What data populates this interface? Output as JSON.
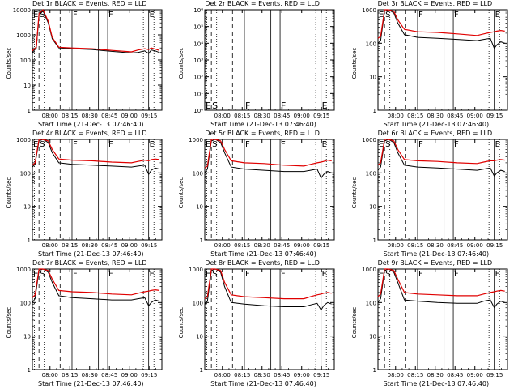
{
  "colors": {
    "events": "#000000",
    "lld": "#e00000",
    "axis": "#000000",
    "background": "#ffffff"
  },
  "common": {
    "ylabel": "Counts/sec",
    "xlabel": "Start Time (21-Dec-13 07:46:40)",
    "xticks": [
      "08:00",
      "08:15",
      "08:30",
      "08:45",
      "09:00",
      "09:15"
    ]
  },
  "chart_data": [
    {
      "type": "line",
      "title": "Det 1r BLACK = Events, RED = LLD",
      "ylim": [
        1,
        10000
      ],
      "yticks": [
        "1",
        "10",
        "100",
        "1000",
        "10000"
      ],
      "markers": [
        {
          "label": "E",
          "t": 0
        },
        {
          "label": "S",
          "t": 5
        },
        {
          "label": "F",
          "t": 30
        },
        {
          "label": "F",
          "t": 57
        },
        {
          "label": "E",
          "t": 88
        }
      ],
      "series": [
        {
          "name": "Events",
          "x": [
            0,
            3,
            5,
            8,
            12,
            15,
            20,
            30,
            45,
            60,
            75,
            80,
            85,
            88,
            90,
            93,
            96
          ],
          "values": [
            200,
            300,
            6000,
            9000,
            3000,
            700,
            300,
            280,
            260,
            220,
            190,
            200,
            230,
            180,
            250,
            230,
            200
          ]
        },
        {
          "name": "LLD",
          "x": [
            0,
            3,
            5,
            8,
            12,
            15,
            20,
            30,
            45,
            60,
            75,
            80,
            85,
            88,
            90,
            93,
            96
          ],
          "values": [
            230,
            330,
            7000,
            10000,
            3500,
            800,
            320,
            300,
            280,
            240,
            210,
            250,
            280,
            260,
            300,
            270,
            240
          ]
        }
      ]
    },
    {
      "type": "line",
      "title": "Det 2r BLACK = Events, RED = LLD",
      "ylim": [
        1,
        1000000
      ],
      "yticks": [
        "10⁰",
        "10¹",
        "10²",
        "10³",
        "10⁴",
        "10⁵",
        "10⁶"
      ],
      "markers": [
        {
          "label": "E",
          "t": 0
        },
        {
          "label": "S",
          "t": 5
        },
        {
          "label": "F",
          "t": 30
        },
        {
          "label": "F",
          "t": 57
        },
        {
          "label": "E",
          "t": 88
        }
      ],
      "series": [
        {
          "name": "Events",
          "x": [],
          "values": []
        },
        {
          "name": "LLD",
          "x": [],
          "values": []
        }
      ]
    },
    {
      "type": "line",
      "title": "Det 3r BLACK = Events, RED = LLD",
      "ylim": [
        1,
        1000
      ],
      "yticks": [
        "1",
        "10",
        "100",
        "1000"
      ],
      "markers": [
        {
          "label": "E",
          "t": 0
        },
        {
          "label": "S",
          "t": 5
        },
        {
          "label": "F",
          "t": 30
        },
        {
          "label": "F",
          "t": 57
        },
        {
          "label": "E",
          "t": 88
        }
      ],
      "series": [
        {
          "name": "Events",
          "x": [
            0,
            2,
            5,
            8,
            12,
            15,
            20,
            30,
            45,
            60,
            75,
            80,
            85,
            88,
            90,
            93,
            96
          ],
          "values": [
            100,
            120,
            900,
            1000,
            800,
            400,
            180,
            150,
            140,
            130,
            120,
            130,
            140,
            70,
            90,
            110,
            100
          ]
        },
        {
          "name": "LLD",
          "x": [
            0,
            2,
            5,
            8,
            12,
            15,
            20,
            30,
            45,
            60,
            75,
            80,
            85,
            88,
            90,
            93,
            96
          ],
          "values": [
            140,
            160,
            1000,
            1000,
            900,
            500,
            260,
            220,
            210,
            190,
            170,
            190,
            210,
            220,
            230,
            240,
            230
          ]
        }
      ]
    },
    {
      "type": "line",
      "title": "Det 4r BLACK = Events, RED = LLD",
      "ylim": [
        1,
        1000
      ],
      "yticks": [
        "1",
        "10",
        "100",
        "1000"
      ],
      "markers": [
        {
          "label": "E",
          "t": 0
        },
        {
          "label": "S",
          "t": 5
        },
        {
          "label": "F",
          "t": 30
        },
        {
          "label": "F",
          "t": 57
        },
        {
          "label": "E",
          "t": 88
        }
      ],
      "series": [
        {
          "name": "Events",
          "x": [
            0,
            2,
            5,
            8,
            12,
            15,
            20,
            30,
            45,
            60,
            75,
            80,
            85,
            88,
            90,
            93,
            96
          ],
          "values": [
            150,
            180,
            900,
            1000,
            800,
            400,
            200,
            180,
            170,
            160,
            150,
            160,
            170,
            90,
            120,
            140,
            130
          ]
        },
        {
          "name": "LLD",
          "x": [
            0,
            2,
            5,
            8,
            12,
            15,
            20,
            30,
            45,
            60,
            75,
            80,
            85,
            88,
            90,
            93,
            96
          ],
          "values": [
            170,
            200,
            1000,
            1000,
            900,
            500,
            260,
            240,
            230,
            210,
            200,
            220,
            240,
            230,
            250,
            260,
            250
          ]
        }
      ]
    },
    {
      "type": "line",
      "title": "Det 5r BLACK = Events, RED = LLD",
      "ylim": [
        1,
        1000
      ],
      "yticks": [
        "1",
        "10",
        "100",
        "1000"
      ],
      "markers": [
        {
          "label": "E",
          "t": 0
        },
        {
          "label": "S",
          "t": 5
        },
        {
          "label": "F",
          "t": 30
        },
        {
          "label": "F",
          "t": 57
        },
        {
          "label": "E",
          "t": 88
        }
      ],
      "series": [
        {
          "name": "Events",
          "x": [
            0,
            2,
            5,
            8,
            12,
            15,
            20,
            30,
            45,
            60,
            75,
            80,
            85,
            88,
            90,
            93,
            96
          ],
          "values": [
            100,
            130,
            900,
            1000,
            800,
            400,
            150,
            130,
            120,
            110,
            110,
            120,
            130,
            70,
            90,
            110,
            100
          ]
        },
        {
          "name": "LLD",
          "x": [
            0,
            2,
            5,
            8,
            12,
            15,
            20,
            30,
            45,
            60,
            75,
            80,
            85,
            88,
            90,
            93,
            96
          ],
          "values": [
            140,
            160,
            1000,
            1000,
            900,
            500,
            230,
            200,
            190,
            170,
            160,
            180,
            200,
            210,
            220,
            240,
            230
          ]
        }
      ]
    },
    {
      "type": "line",
      "title": "Det 6r BLACK = Events, RED = LLD",
      "ylim": [
        1,
        1000
      ],
      "yticks": [
        "1",
        "10",
        "100",
        "1000"
      ],
      "markers": [
        {
          "label": "E",
          "t": 0
        },
        {
          "label": "S",
          "t": 5
        },
        {
          "label": "F",
          "t": 30
        },
        {
          "label": "F",
          "t": 57
        },
        {
          "label": "E",
          "t": 88
        }
      ],
      "series": [
        {
          "name": "Events",
          "x": [
            0,
            2,
            5,
            8,
            12,
            15,
            20,
            30,
            45,
            60,
            75,
            80,
            85,
            88,
            90,
            93,
            96
          ],
          "values": [
            120,
            150,
            900,
            1000,
            800,
            400,
            170,
            150,
            140,
            130,
            120,
            130,
            140,
            80,
            100,
            120,
            110
          ]
        },
        {
          "name": "LLD",
          "x": [
            0,
            2,
            5,
            8,
            12,
            15,
            20,
            30,
            45,
            60,
            75,
            80,
            85,
            88,
            90,
            93,
            96
          ],
          "values": [
            170,
            200,
            1000,
            1000,
            900,
            500,
            250,
            230,
            220,
            200,
            190,
            210,
            230,
            230,
            240,
            250,
            240
          ]
        }
      ]
    },
    {
      "type": "line",
      "title": "Det 7r BLACK = Events, RED = LLD",
      "ylim": [
        1,
        1000
      ],
      "yticks": [
        "1",
        "10",
        "100",
        "1000"
      ],
      "markers": [
        {
          "label": "E",
          "t": 0
        },
        {
          "label": "S",
          "t": 5
        },
        {
          "label": "F",
          "t": 30
        },
        {
          "label": "F",
          "t": 57
        },
        {
          "label": "E",
          "t": 88
        }
      ],
      "series": [
        {
          "name": "Events",
          "x": [
            0,
            2,
            5,
            8,
            12,
            15,
            20,
            30,
            45,
            60,
            75,
            80,
            85,
            88,
            90,
            93,
            96
          ],
          "values": [
            100,
            130,
            900,
            1000,
            800,
            400,
            160,
            140,
            130,
            120,
            120,
            130,
            140,
            80,
            100,
            120,
            110
          ]
        },
        {
          "name": "LLD",
          "x": [
            0,
            2,
            5,
            8,
            12,
            15,
            20,
            30,
            45,
            60,
            75,
            80,
            85,
            88,
            90,
            93,
            96
          ],
          "values": [
            140,
            170,
            1000,
            1000,
            900,
            500,
            230,
            210,
            200,
            180,
            170,
            190,
            210,
            220,
            230,
            240,
            230
          ]
        }
      ]
    },
    {
      "type": "line",
      "title": "Det 8r BLACK = Events, RED = LLD",
      "ylim": [
        1,
        1000
      ],
      "yticks": [
        "1",
        "10",
        "100",
        "1000"
      ],
      "markers": [
        {
          "label": "E",
          "t": 0
        },
        {
          "label": "S",
          "t": 5
        },
        {
          "label": "F",
          "t": 30
        },
        {
          "label": "F",
          "t": 57
        },
        {
          "label": "E",
          "t": 88
        }
      ],
      "series": [
        {
          "name": "Events",
          "x": [
            0,
            2,
            5,
            8,
            12,
            15,
            20,
            30,
            45,
            60,
            75,
            80,
            85,
            88,
            90,
            93,
            96
          ],
          "values": [
            90,
            110,
            900,
            1000,
            800,
            300,
            100,
            90,
            80,
            75,
            75,
            85,
            95,
            60,
            80,
            100,
            90
          ]
        },
        {
          "name": "LLD",
          "x": [
            0,
            2,
            5,
            8,
            12,
            15,
            20,
            30,
            45,
            60,
            75,
            80,
            85,
            88,
            90,
            93,
            96
          ],
          "values": [
            130,
            150,
            1000,
            1000,
            900,
            400,
            170,
            150,
            140,
            130,
            130,
            150,
            170,
            180,
            190,
            200,
            190
          ]
        }
      ]
    },
    {
      "type": "line",
      "title": "Det 9r BLACK = Events, RED = LLD",
      "ylim": [
        1,
        1000
      ],
      "yticks": [
        "1",
        "10",
        "100",
        "1000"
      ],
      "markers": [
        {
          "label": "E",
          "t": 0
        },
        {
          "label": "S",
          "t": 5
        },
        {
          "label": "F",
          "t": 30
        },
        {
          "label": "F",
          "t": 57
        },
        {
          "label": "E",
          "t": 88
        }
      ],
      "series": [
        {
          "name": "Events",
          "x": [
            0,
            2,
            5,
            8,
            12,
            15,
            20,
            30,
            45,
            60,
            75,
            80,
            85,
            88,
            90,
            93,
            96
          ],
          "values": [
            100,
            130,
            900,
            1000,
            800,
            400,
            120,
            110,
            100,
            95,
            95,
            110,
            120,
            70,
            90,
            110,
            100
          ]
        },
        {
          "name": "LLD",
          "x": [
            0,
            2,
            5,
            8,
            12,
            15,
            20,
            30,
            45,
            60,
            75,
            80,
            85,
            88,
            90,
            93,
            96
          ],
          "values": [
            150,
            180,
            1000,
            1000,
            900,
            500,
            200,
            180,
            170,
            160,
            160,
            180,
            200,
            210,
            220,
            230,
            220
          ]
        }
      ]
    }
  ]
}
